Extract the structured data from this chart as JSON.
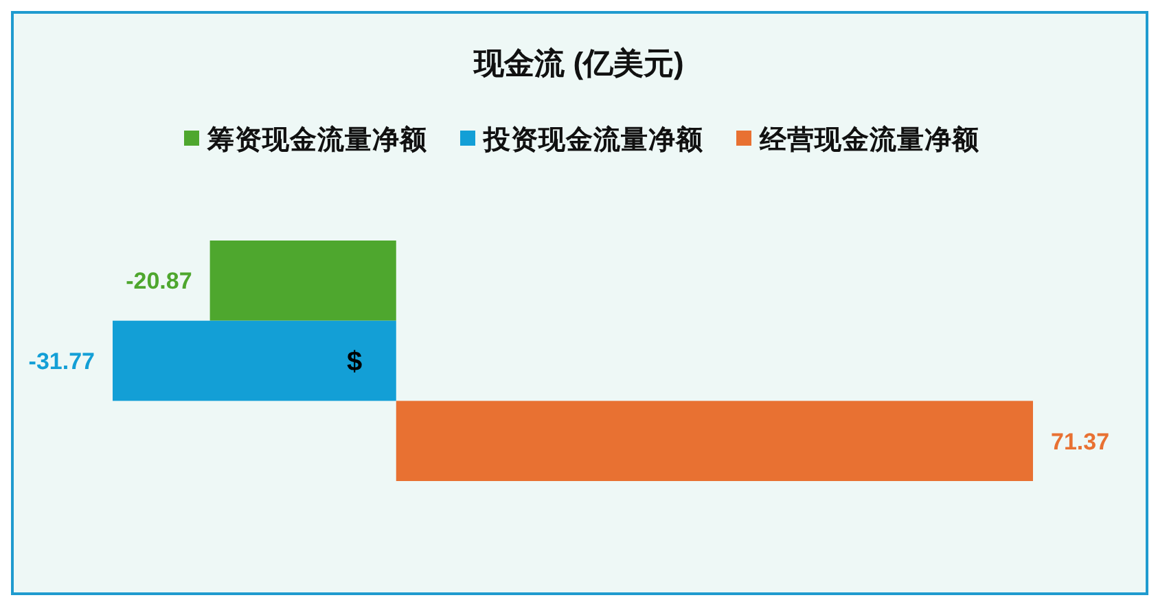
{
  "chart_data": {
    "type": "bar",
    "orientation": "horizontal",
    "title": "现金流 (亿美元)",
    "categories": [
      null
    ],
    "series": [
      {
        "name": "筹资现金流量净额",
        "color": "#4ea72e",
        "values": [
          -20.87
        ]
      },
      {
        "name": "投资现金流量净额",
        "color": "#139fd6",
        "values": [
          -31.77
        ]
      },
      {
        "name": "经营现金流量净额",
        "color": "#e87132",
        "values": [
          71.37
        ]
      }
    ],
    "tick_labels": false,
    "data_labels": true,
    "legend": "top",
    "annotations": [
      "$"
    ]
  }
}
